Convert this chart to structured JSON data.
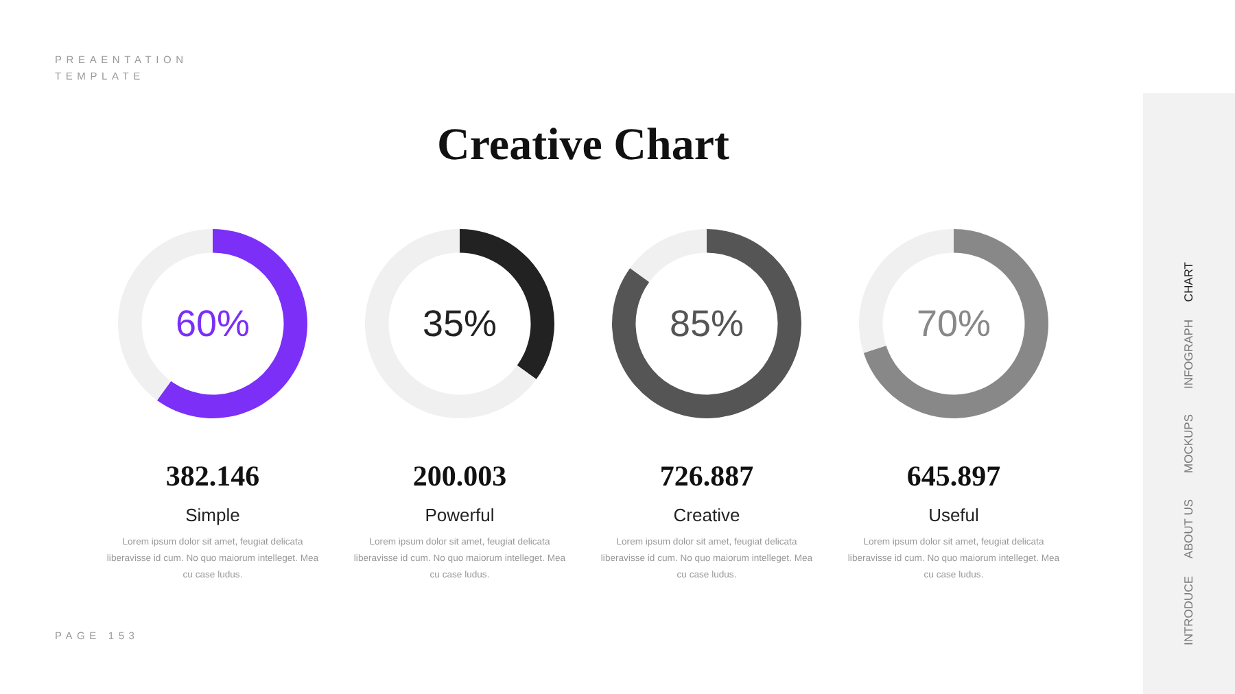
{
  "chart_data": [
    {
      "type": "other",
      "title": "Creative Chart",
      "annotations": [
        "PREAENTATION TEMPLATE",
        "PAGE 153",
        "CHART",
        "INFOGRAPH",
        "MOCKUPS",
        "ABOUT US",
        "INTRODUCE"
      ]
    },
    {
      "type": "donut",
      "title": "382.146",
      "subtitle": "Simple",
      "categories": [
        null,
        null
      ],
      "values": [
        60,
        40
      ],
      "colors": [
        "#7b2ff7",
        "#f0f0f0"
      ],
      "value_labels": [
        "60%",
        null
      ],
      "annotations": [
        "Lorem ipsum dolor sit amet, feugiat delicata liberavisse id cum. No quo maiorum intelleget. Mea cu case ludus."
      ]
    },
    {
      "type": "donut",
      "title": "200.003",
      "subtitle": "Powerful",
      "categories": [
        null,
        null
      ],
      "values": [
        35,
        65
      ],
      "colors": [
        "#222222",
        "#f0f0f0"
      ],
      "value_labels": [
        "35%",
        null
      ],
      "annotations": [
        "Lorem ipsum dolor sit amet, feugiat delicata liberavisse id cum. No quo maiorum intelleget. Mea cu case ludus."
      ]
    },
    {
      "type": "donut",
      "title": "726.887",
      "subtitle": "Creative",
      "categories": [
        null,
        null
      ],
      "values": [
        85,
        15
      ],
      "colors": [
        "#555555",
        "#f0f0f0"
      ],
      "value_labels": [
        "85%",
        null
      ],
      "annotations": [
        "Lorem ipsum dolor sit amet, feugiat delicata liberavisse id cum. No quo maiorum intelleget. Mea cu case ludus."
      ]
    },
    {
      "type": "donut",
      "title": "645.897",
      "subtitle": "Useful",
      "categories": [
        null,
        null
      ],
      "values": [
        70,
        30
      ],
      "colors": [
        "#888888",
        "#f0f0f0"
      ],
      "value_labels": [
        "70%",
        null
      ],
      "annotations": [
        "Lorem ipsum dolor sit amet, feugiat delicata liberavisse id cum. No quo maiorum intelleget. Mea cu case ludus."
      ]
    }
  ]
}
